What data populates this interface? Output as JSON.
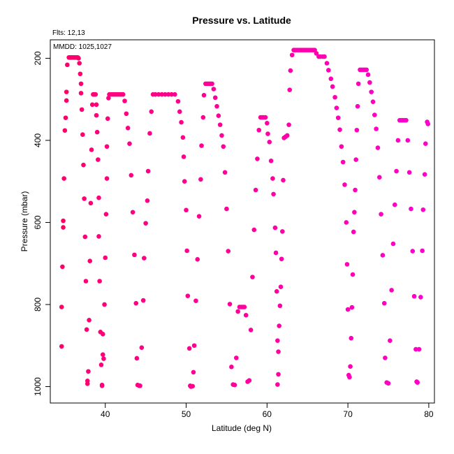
{
  "header": {
    "fits_text": "Flts: 12,13",
    "mmdd_text": "MMDD: 1025,1027"
  },
  "chart_data": {
    "type": "scatter",
    "title": "Pressure vs. Latitude",
    "xlabel": "Latitude (deg N)",
    "ylabel": "Pressure (mbar)",
    "xlim": [
      33.2,
      80.7
    ],
    "ylim": [
      1040,
      155
    ],
    "y_reversed": true,
    "grid": false,
    "x_ticks": [
      40,
      50,
      60,
      70,
      80
    ],
    "y_ticks": [
      200,
      400,
      600,
      800,
      1000
    ],
    "point_color_start": "#ff0066",
    "point_color_end": "#ff00cc",
    "points": [
      [
        34.6,
        902
      ],
      [
        34.6,
        806
      ],
      [
        34.7,
        708
      ],
      [
        34.8,
        612
      ],
      [
        34.8,
        596
      ],
      [
        34.9,
        493
      ],
      [
        35.0,
        376
      ],
      [
        35.1,
        345
      ],
      [
        35.2,
        303
      ],
      [
        35.2,
        282
      ],
      [
        35.3,
        216
      ],
      [
        35.5,
        198
      ],
      [
        35.6,
        198
      ],
      [
        35.7,
        198
      ],
      [
        35.8,
        198
      ],
      [
        35.9,
        198
      ],
      [
        36.0,
        198
      ],
      [
        36.1,
        198
      ],
      [
        36.2,
        198
      ],
      [
        36.3,
        198
      ],
      [
        36.4,
        198
      ],
      [
        36.5,
        198
      ],
      [
        36.6,
        198
      ],
      [
        36.7,
        200
      ],
      [
        36.8,
        212
      ],
      [
        36.9,
        238
      ],
      [
        37.0,
        262
      ],
      [
        37.0,
        285
      ],
      [
        37.1,
        325
      ],
      [
        37.2,
        386
      ],
      [
        37.3,
        460
      ],
      [
        37.4,
        542
      ],
      [
        37.5,
        635
      ],
      [
        37.6,
        743
      ],
      [
        37.7,
        861
      ],
      [
        37.8,
        986
      ],
      [
        37.8,
        993
      ],
      [
        37.9,
        963
      ],
      [
        38.0,
        838
      ],
      [
        38.1,
        694
      ],
      [
        38.2,
        553
      ],
      [
        38.3,
        423
      ],
      [
        38.4,
        313
      ],
      [
        38.5,
        288
      ],
      [
        38.6,
        288
      ],
      [
        38.7,
        288
      ],
      [
        38.8,
        288
      ],
      [
        38.9,
        313
      ],
      [
        38.9,
        339
      ],
      [
        39.0,
        380
      ],
      [
        39.1,
        447
      ],
      [
        39.2,
        540
      ],
      [
        39.2,
        634
      ],
      [
        39.3,
        743
      ],
      [
        39.4,
        867
      ],
      [
        39.5,
        947
      ],
      [
        39.6,
        996
      ],
      [
        39.6,
        998
      ],
      [
        39.7,
        872
      ],
      [
        39.7,
        922
      ],
      [
        39.8,
        932
      ],
      [
        39.9,
        800
      ],
      [
        40.0,
        686
      ],
      [
        40.1,
        580
      ],
      [
        40.2,
        493
      ],
      [
        40.2,
        415
      ],
      [
        40.3,
        347
      ],
      [
        40.4,
        297
      ],
      [
        40.5,
        288
      ],
      [
        40.6,
        288
      ],
      [
        40.8,
        288
      ],
      [
        41.0,
        288
      ],
      [
        41.2,
        288
      ],
      [
        41.4,
        288
      ],
      [
        41.6,
        288
      ],
      [
        41.8,
        288
      ],
      [
        42.0,
        288
      ],
      [
        42.2,
        288
      ],
      [
        42.4,
        304
      ],
      [
        42.6,
        335
      ],
      [
        42.8,
        370
      ],
      [
        43.0,
        408
      ],
      [
        43.2,
        485
      ],
      [
        43.4,
        575
      ],
      [
        43.6,
        679
      ],
      [
        43.8,
        797
      ],
      [
        43.9,
        931
      ],
      [
        44.0,
        996
      ],
      [
        44.2,
        998
      ],
      [
        44.3,
        998
      ],
      [
        44.5,
        905
      ],
      [
        44.7,
        790
      ],
      [
        44.8,
        687
      ],
      [
        45.0,
        602
      ],
      [
        45.2,
        547
      ],
      [
        45.3,
        475
      ],
      [
        45.5,
        383
      ],
      [
        45.7,
        330
      ],
      [
        45.9,
        288
      ],
      [
        46.2,
        288
      ],
      [
        46.6,
        288
      ],
      [
        47.0,
        288
      ],
      [
        47.4,
        288
      ],
      [
        47.8,
        288
      ],
      [
        48.2,
        288
      ],
      [
        48.6,
        288
      ],
      [
        49.0,
        305
      ],
      [
        49.2,
        330
      ],
      [
        49.4,
        356
      ],
      [
        49.6,
        393
      ],
      [
        49.7,
        440
      ],
      [
        49.8,
        500
      ],
      [
        50.0,
        570
      ],
      [
        50.1,
        669
      ],
      [
        50.2,
        779
      ],
      [
        50.4,
        907
      ],
      [
        50.5,
        998
      ],
      [
        50.6,
        1000
      ],
      [
        50.8,
        999
      ],
      [
        50.9,
        965
      ],
      [
        51.0,
        900
      ],
      [
        51.2,
        791
      ],
      [
        51.4,
        690
      ],
      [
        51.6,
        585
      ],
      [
        51.8,
        495
      ],
      [
        51.9,
        413
      ],
      [
        52.1,
        344
      ],
      [
        52.2,
        290
      ],
      [
        52.4,
        262
      ],
      [
        52.6,
        262
      ],
      [
        52.8,
        262
      ],
      [
        53.0,
        262
      ],
      [
        53.2,
        262
      ],
      [
        53.4,
        275
      ],
      [
        53.6,
        296
      ],
      [
        53.8,
        317
      ],
      [
        54.0,
        340
      ],
      [
        54.2,
        362
      ],
      [
        54.4,
        388
      ],
      [
        54.6,
        415
      ],
      [
        54.8,
        478
      ],
      [
        55.0,
        567
      ],
      [
        55.2,
        670
      ],
      [
        55.4,
        799
      ],
      [
        55.6,
        952
      ],
      [
        55.8,
        995
      ],
      [
        56.0,
        996
      ],
      [
        56.2,
        930
      ],
      [
        56.4,
        817
      ],
      [
        56.6,
        806
      ],
      [
        56.8,
        806
      ],
      [
        57.0,
        806
      ],
      [
        57.2,
        806
      ],
      [
        57.4,
        826
      ],
      [
        57.6,
        988
      ],
      [
        57.8,
        985
      ],
      [
        58.0,
        862
      ],
      [
        58.2,
        733
      ],
      [
        58.4,
        618
      ],
      [
        58.6,
        521
      ],
      [
        58.8,
        445
      ],
      [
        59.0,
        375
      ],
      [
        59.2,
        344
      ],
      [
        59.4,
        344
      ],
      [
        59.6,
        344
      ],
      [
        59.8,
        344
      ],
      [
        60.0,
        358
      ],
      [
        60.1,
        384
      ],
      [
        60.3,
        404
      ],
      [
        60.5,
        450
      ],
      [
        60.7,
        493
      ],
      [
        60.8,
        531
      ],
      [
        61.0,
        613
      ],
      [
        61.1,
        674
      ],
      [
        61.2,
        768
      ],
      [
        61.3,
        888
      ],
      [
        61.4,
        915
      ],
      [
        61.4,
        970
      ],
      [
        61.3,
        995
      ],
      [
        61.5,
        852
      ],
      [
        61.6,
        803
      ],
      [
        61.7,
        757
      ],
      [
        61.8,
        689
      ],
      [
        61.9,
        622
      ],
      [
        62.0,
        497
      ],
      [
        62.1,
        394
      ],
      [
        62.3,
        391
      ],
      [
        62.5,
        388
      ],
      [
        62.7,
        362
      ],
      [
        62.8,
        277
      ],
      [
        62.9,
        230
      ],
      [
        63.1,
        192
      ],
      [
        63.3,
        180
      ],
      [
        63.5,
        180
      ],
      [
        63.7,
        180
      ],
      [
        63.9,
        180
      ],
      [
        64.1,
        180
      ],
      [
        64.3,
        180
      ],
      [
        64.5,
        180
      ],
      [
        64.7,
        180
      ],
      [
        64.9,
        180
      ],
      [
        65.1,
        180
      ],
      [
        65.3,
        180
      ],
      [
        65.5,
        180
      ],
      [
        65.7,
        180
      ],
      [
        65.9,
        180
      ],
      [
        66.1,
        188
      ],
      [
        66.4,
        196
      ],
      [
        66.6,
        196
      ],
      [
        66.9,
        196
      ],
      [
        67.1,
        196
      ],
      [
        67.4,
        212
      ],
      [
        67.6,
        229
      ],
      [
        67.9,
        250
      ],
      [
        68.1,
        269
      ],
      [
        68.4,
        295
      ],
      [
        68.6,
        321
      ],
      [
        68.8,
        345
      ],
      [
        69.0,
        374
      ],
      [
        69.2,
        415
      ],
      [
        69.4,
        453
      ],
      [
        69.6,
        508
      ],
      [
        69.8,
        600
      ],
      [
        69.9,
        702
      ],
      [
        70.0,
        812
      ],
      [
        70.1,
        972
      ],
      [
        70.2,
        977
      ],
      [
        70.3,
        951
      ],
      [
        70.4,
        882
      ],
      [
        70.5,
        807
      ],
      [
        70.6,
        727
      ],
      [
        70.7,
        623
      ],
      [
        70.8,
        575
      ],
      [
        70.9,
        521
      ],
      [
        71.0,
        447
      ],
      [
        71.1,
        375
      ],
      [
        71.2,
        317
      ],
      [
        71.3,
        262
      ],
      [
        71.5,
        228
      ],
      [
        71.7,
        228
      ],
      [
        71.9,
        228
      ],
      [
        72.1,
        228
      ],
      [
        72.3,
        228
      ],
      [
        72.5,
        240
      ],
      [
        72.7,
        259
      ],
      [
        72.9,
        282
      ],
      [
        73.1,
        306
      ],
      [
        73.3,
        338
      ],
      [
        73.5,
        372
      ],
      [
        73.7,
        418
      ],
      [
        73.9,
        490
      ],
      [
        74.1,
        580
      ],
      [
        74.3,
        680
      ],
      [
        74.5,
        797
      ],
      [
        74.6,
        930
      ],
      [
        74.8,
        990
      ],
      [
        75.0,
        992
      ],
      [
        75.2,
        888
      ],
      [
        75.4,
        765
      ],
      [
        75.6,
        652
      ],
      [
        75.8,
        557
      ],
      [
        76.0,
        475
      ],
      [
        76.2,
        400
      ],
      [
        76.4,
        351
      ],
      [
        76.6,
        351
      ],
      [
        76.8,
        351
      ],
      [
        77.0,
        351
      ],
      [
        77.2,
        351
      ],
      [
        77.4,
        400
      ],
      [
        77.6,
        478
      ],
      [
        77.8,
        567
      ],
      [
        78.0,
        670
      ],
      [
        78.2,
        780
      ],
      [
        78.4,
        909
      ],
      [
        78.5,
        988
      ],
      [
        78.6,
        990
      ],
      [
        78.8,
        909
      ],
      [
        79.0,
        782
      ],
      [
        79.2,
        669
      ],
      [
        79.3,
        569
      ],
      [
        79.5,
        483
      ],
      [
        79.6,
        408
      ],
      [
        79.8,
        355
      ],
      [
        79.9,
        360
      ]
    ]
  }
}
